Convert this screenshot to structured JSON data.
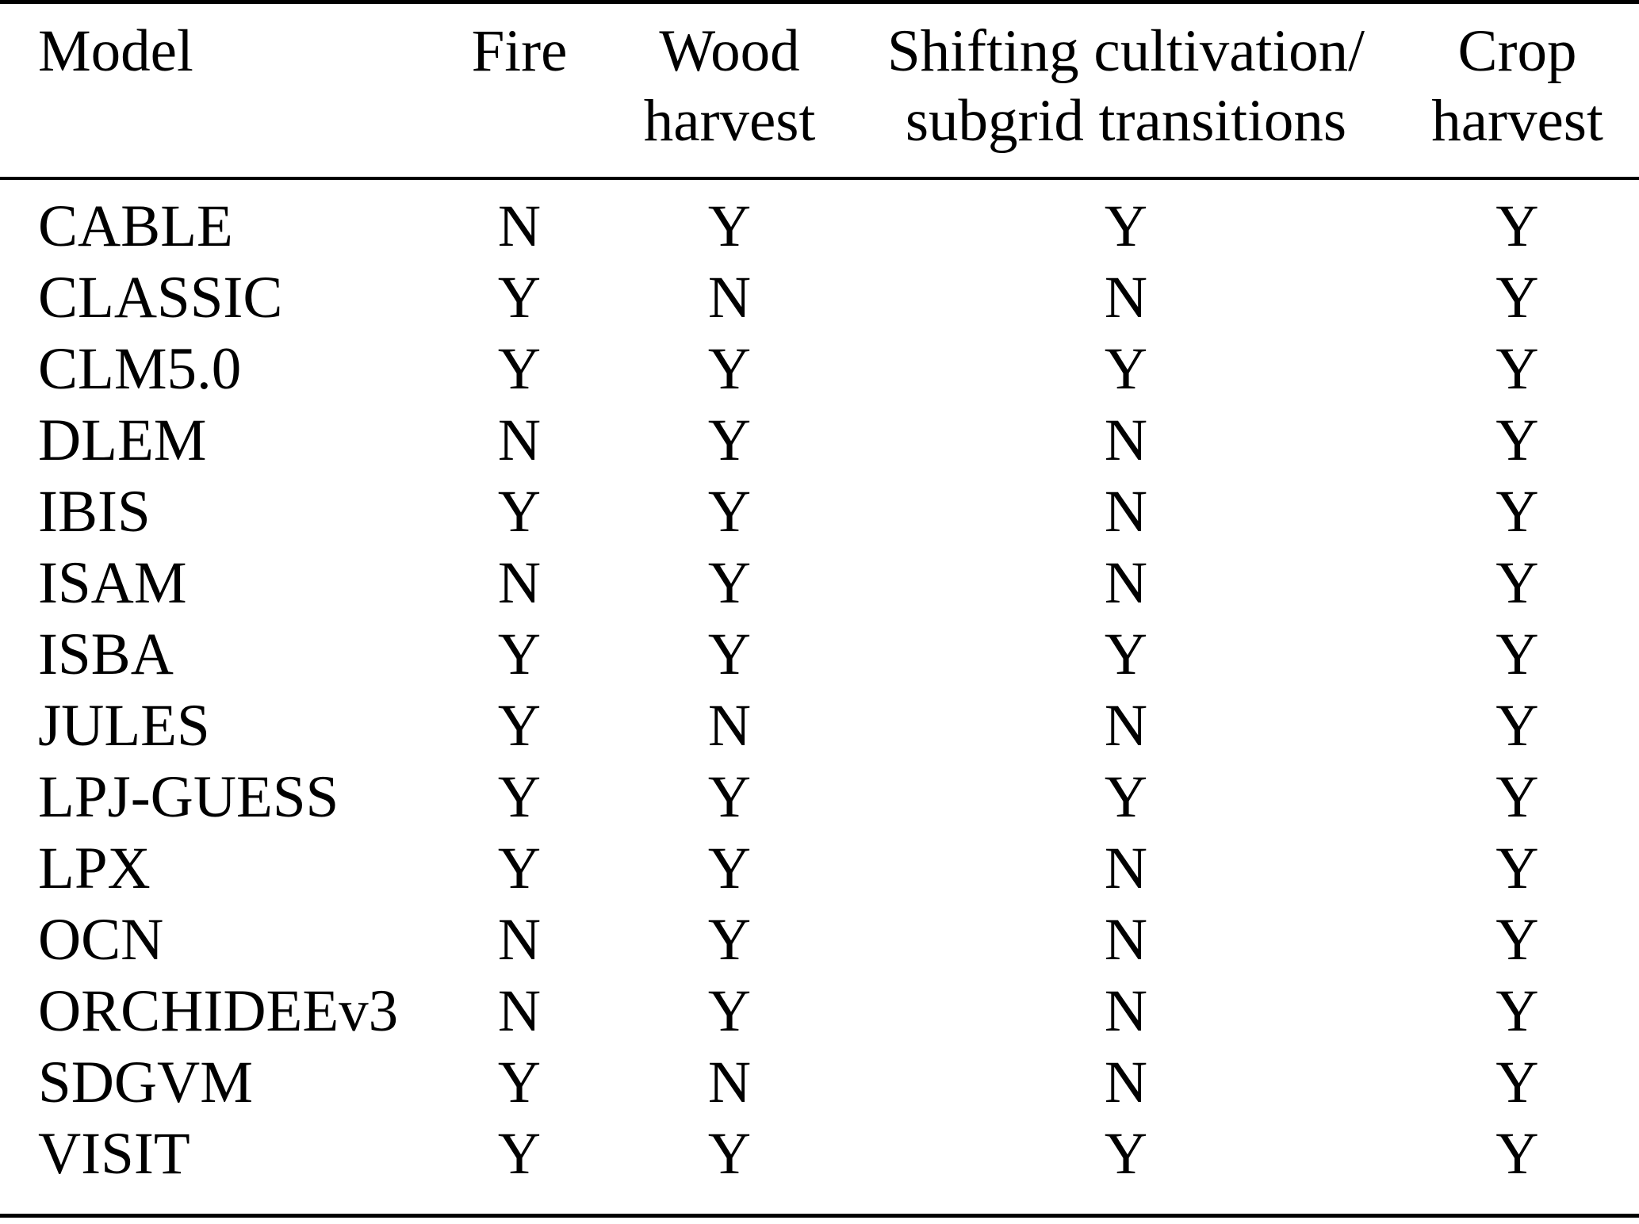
{
  "table": {
    "headers": [
      {
        "line1": "Model"
      },
      {
        "line1": "Fire"
      },
      {
        "line1": "Wood",
        "line2": "harvest"
      },
      {
        "line1": "Shifting cultivation/",
        "line2": "subgrid transitions"
      },
      {
        "line1": "Crop",
        "line2": "harvest"
      }
    ],
    "rows": [
      {
        "model": "CABLE",
        "fire": "N",
        "wood_harvest": "Y",
        "shifting": "Y",
        "crop_harvest": "Y"
      },
      {
        "model": "CLASSIC",
        "fire": "Y",
        "wood_harvest": "N",
        "shifting": "N",
        "crop_harvest": "Y"
      },
      {
        "model": "CLM5.0",
        "fire": "Y",
        "wood_harvest": "Y",
        "shifting": "Y",
        "crop_harvest": "Y"
      },
      {
        "model": "DLEM",
        "fire": "N",
        "wood_harvest": "Y",
        "shifting": "N",
        "crop_harvest": "Y"
      },
      {
        "model": "IBIS",
        "fire": "Y",
        "wood_harvest": "Y",
        "shifting": "N",
        "crop_harvest": "Y"
      },
      {
        "model": "ISAM",
        "fire": "N",
        "wood_harvest": "Y",
        "shifting": "N",
        "crop_harvest": "Y"
      },
      {
        "model": "ISBA",
        "fire": "Y",
        "wood_harvest": "Y",
        "shifting": "Y",
        "crop_harvest": "Y"
      },
      {
        "model": "JULES",
        "fire": "Y",
        "wood_harvest": "N",
        "shifting": "N",
        "crop_harvest": "Y"
      },
      {
        "model": "LPJ-GUESS",
        "fire": "Y",
        "wood_harvest": "Y",
        "shifting": "Y",
        "crop_harvest": "Y"
      },
      {
        "model": "LPX",
        "fire": "Y",
        "wood_harvest": "Y",
        "shifting": "N",
        "crop_harvest": "Y"
      },
      {
        "model": "OCN",
        "fire": "N",
        "wood_harvest": "Y",
        "shifting": "N",
        "crop_harvest": "Y"
      },
      {
        "model": "ORCHIDEEv3",
        "fire": "N",
        "wood_harvest": "Y",
        "shifting": "N",
        "crop_harvest": "Y"
      },
      {
        "model": "SDGVM",
        "fire": "Y",
        "wood_harvest": "N",
        "shifting": "N",
        "crop_harvest": "Y"
      },
      {
        "model": "VISIT",
        "fire": "Y",
        "wood_harvest": "Y",
        "shifting": "Y",
        "crop_harvest": "Y"
      }
    ],
    "colors": {
      "text": "#000000",
      "background": "#ffffff",
      "rule": "#000000"
    }
  }
}
